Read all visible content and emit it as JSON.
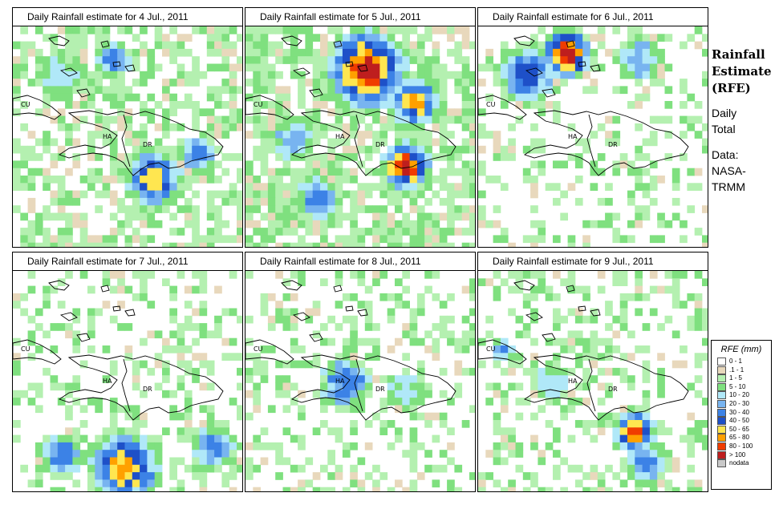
{
  "panels": [
    {
      "title": "Daily Rainfall estimate for  4 Jul., 2011",
      "id": "jul4"
    },
    {
      "title": "Daily Rainfall estimate for  5 Jul., 2011",
      "id": "jul5"
    },
    {
      "title": "Daily Rainfall estimate for  6 Jul., 2011",
      "id": "jul6"
    },
    {
      "title": "Daily Rainfall estimate for  7 Jul., 2011",
      "id": "jul7"
    },
    {
      "title": "Daily Rainfall estimate for  8 Jul., 2011",
      "id": "jul8"
    },
    {
      "title": "Daily Rainfall estimate for  9 Jul., 2011",
      "id": "jul9"
    }
  ],
  "country_labels": {
    "cuba": "CU",
    "haiti": "HA",
    "dominican_republic": "DR"
  },
  "info": {
    "title_line1": "Rainfall",
    "title_line2": "Estimate",
    "title_line3": "(RFE)",
    "daily": "Daily",
    "total": "Total",
    "data_label": "Data:",
    "source_line1": "NASA-",
    "source_line2": "TRMM"
  },
  "legend": {
    "title": "RFE (mm)",
    "classes": [
      {
        "label": "0 - 1",
        "color": "#ffffff"
      },
      {
        "label": ".1 - 1",
        "color": "#e8d8bc"
      },
      {
        "label": "1 - 5",
        "color": "#b4f0b0"
      },
      {
        "label": "5 - 10",
        "color": "#7fe07f"
      },
      {
        "label": "10 - 20",
        "color": "#b0e8f8"
      },
      {
        "label": "20 - 30",
        "color": "#78b4f0"
      },
      {
        "label": "30 - 40",
        "color": "#3c82e6"
      },
      {
        "label": "40 - 50",
        "color": "#1e50c8"
      },
      {
        "label": "50 - 65",
        "color": "#ffe650"
      },
      {
        "label": "65 - 80",
        "color": "#ffa000"
      },
      {
        "label": "80 - 100",
        "color": "#f03c00"
      },
      {
        "label": "> 100",
        "color": "#be1e1e"
      },
      {
        "label": "nodata",
        "color": "#c8c8c8"
      }
    ]
  }
}
